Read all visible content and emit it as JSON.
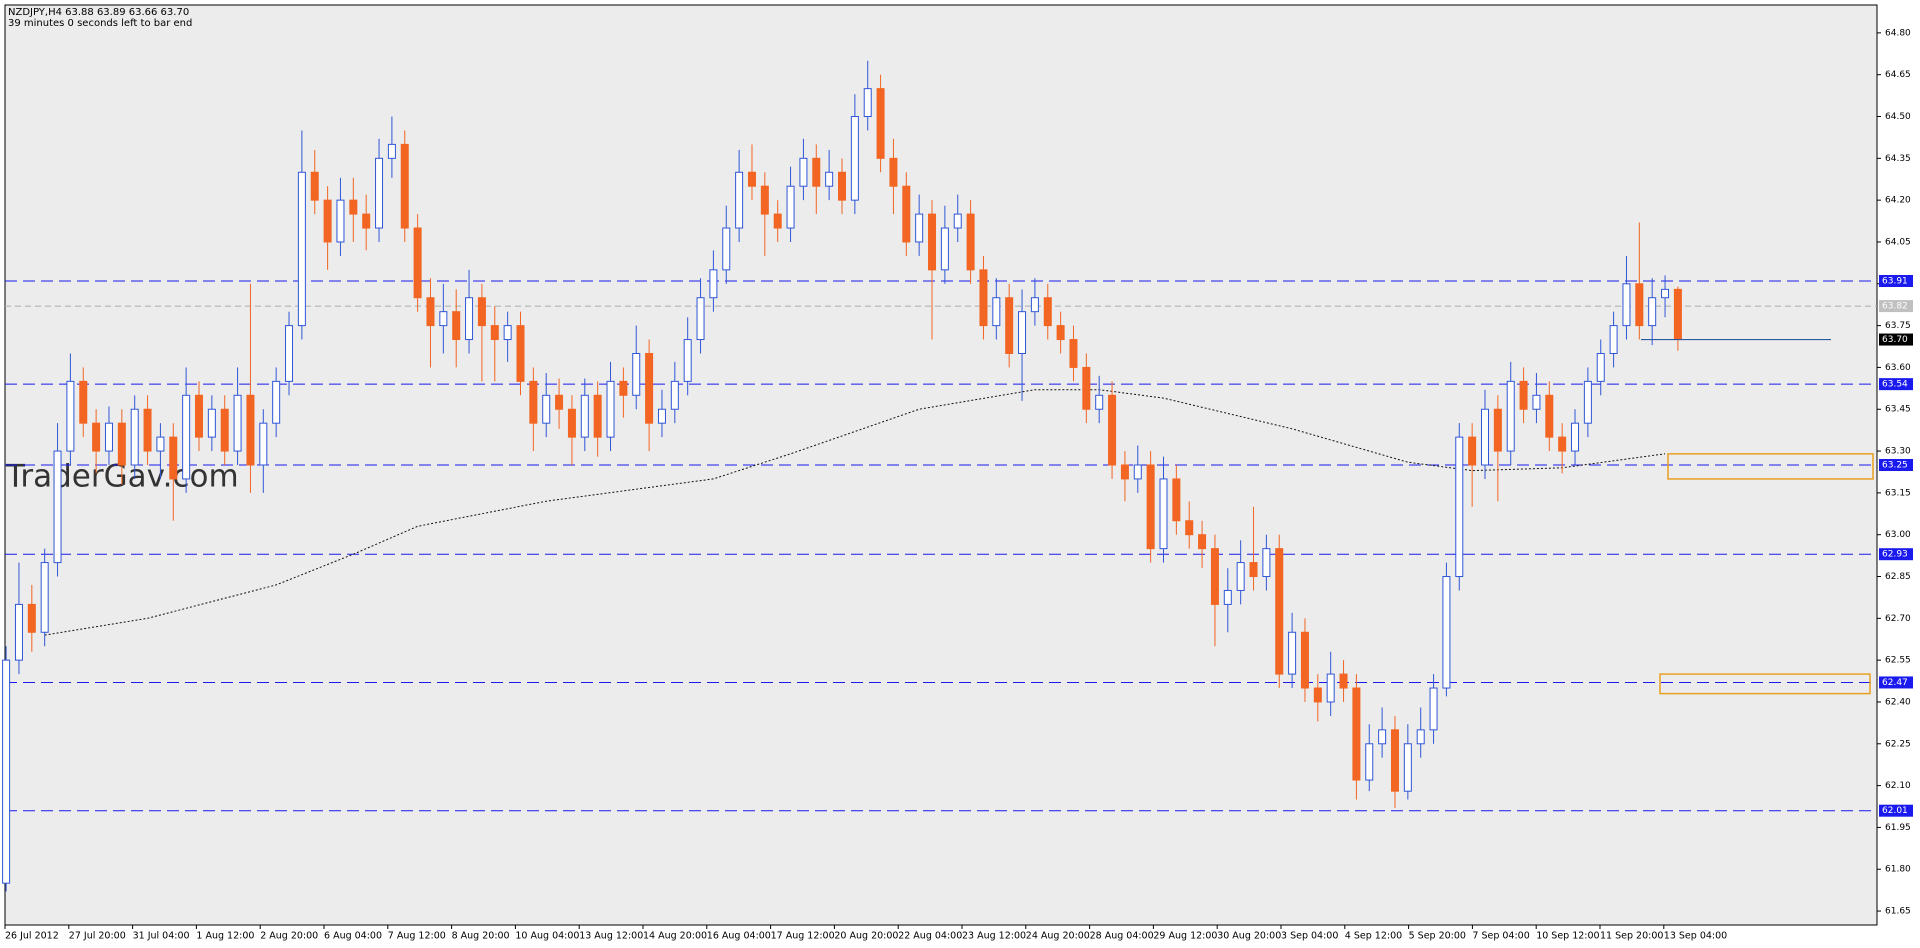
{
  "chart_data": {
    "type": "candlestick",
    "header": {
      "quote_line": "NZDJPY,H4  63.88 63.89 63.66 63.70",
      "timer": "39 minutes 0 seconds left to bar end"
    },
    "watermark": "TraderGav.com",
    "up_color": "#2f56d8",
    "down_color": "#f26522",
    "background": "#ececec",
    "ylim": [
      61.6,
      64.9
    ],
    "yticks": [
      {
        "value": 64.8,
        "label": "64.80"
      },
      64.65,
      {
        "value": 64.5,
        "label": "64.50"
      },
      64.35,
      {
        "value": 64.2,
        "label": "64.20"
      },
      64.05,
      {
        "value": 63.9,
        "label": "63.90"
      },
      63.75,
      {
        "value": 63.6,
        "label": "63.60"
      },
      63.45,
      {
        "value": 63.3,
        "label": "63.30"
      },
      63.15,
      {
        "value": 63.0,
        "label": "63.00"
      },
      62.85,
      {
        "value": 62.7,
        "label": "62.70"
      },
      62.55,
      {
        "value": 62.4,
        "label": "62.40"
      },
      62.25,
      {
        "value": 62.1,
        "label": "62.10"
      },
      61.95,
      {
        "value": 61.8,
        "label": "61.80"
      },
      61.65
    ],
    "x_labels": [
      "26 Jul 2012",
      "27 Jul 20:00",
      "31 Jul 04:00",
      "1 Aug 12:00",
      "2 Aug 20:00",
      "6 Aug 04:00",
      "7 Aug 12:00",
      "8 Aug 20:00",
      "10 Aug 04:00",
      "13 Aug 12:00",
      "14 Aug 20:00",
      "16 Aug 04:00",
      "17 Aug 12:00",
      "20 Aug 20:00",
      "22 Aug 04:00",
      "23 Aug 12:00",
      "24 Aug 20:00",
      "28 Aug 04:00",
      "29 Aug 12:00",
      "30 Aug 20:00",
      "3 Sep 04:00",
      "4 Sep 12:00",
      "5 Sep 20:00",
      "7 Sep 04:00",
      "10 Sep 12:00",
      "11 Sep 20:00",
      "13 Sep 04:00"
    ],
    "ohlc": [
      [
        61.75,
        62.6,
        61.72,
        62.55
      ],
      [
        62.55,
        62.9,
        62.5,
        62.75
      ],
      [
        62.75,
        62.82,
        62.58,
        62.65
      ],
      [
        62.65,
        62.95,
        62.6,
        62.9
      ],
      [
        62.9,
        63.4,
        62.85,
        63.3
      ],
      [
        63.3,
        63.65,
        63.25,
        63.55
      ],
      [
        63.55,
        63.6,
        63.35,
        63.4
      ],
      [
        63.4,
        63.45,
        63.22,
        63.3
      ],
      [
        63.3,
        63.46,
        63.25,
        63.4
      ],
      [
        63.4,
        63.45,
        63.18,
        63.25
      ],
      [
        63.25,
        63.5,
        63.2,
        63.45
      ],
      [
        63.45,
        63.5,
        63.25,
        63.3
      ],
      [
        63.3,
        63.4,
        63.2,
        63.35
      ],
      [
        63.35,
        63.4,
        63.05,
        63.2
      ],
      [
        63.2,
        63.6,
        63.15,
        63.5
      ],
      [
        63.5,
        63.55,
        63.3,
        63.35
      ],
      [
        63.35,
        63.5,
        63.3,
        63.45
      ],
      [
        63.45,
        63.5,
        63.25,
        63.3
      ],
      [
        63.3,
        63.6,
        63.25,
        63.5
      ],
      [
        63.5,
        63.9,
        63.15,
        63.25
      ],
      [
        63.25,
        63.45,
        63.15,
        63.4
      ],
      [
        63.4,
        63.6,
        63.35,
        63.55
      ],
      [
        63.55,
        63.8,
        63.5,
        63.75
      ],
      [
        63.75,
        64.45,
        63.7,
        64.3
      ],
      [
        64.3,
        64.38,
        64.15,
        64.2
      ],
      [
        64.2,
        64.25,
        63.95,
        64.05
      ],
      [
        64.05,
        64.28,
        64.0,
        64.2
      ],
      [
        64.2,
        64.28,
        64.05,
        64.15
      ],
      [
        64.15,
        64.22,
        64.02,
        64.1
      ],
      [
        64.1,
        64.42,
        64.05,
        64.35
      ],
      [
        64.35,
        64.5,
        64.28,
        64.4
      ],
      [
        64.4,
        64.45,
        64.05,
        64.1
      ],
      [
        64.1,
        64.15,
        63.8,
        63.85
      ],
      [
        63.85,
        63.92,
        63.6,
        63.75
      ],
      [
        63.75,
        63.9,
        63.65,
        63.8
      ],
      [
        63.8,
        63.88,
        63.6,
        63.7
      ],
      [
        63.7,
        63.95,
        63.65,
        63.85
      ],
      [
        63.85,
        63.9,
        63.55,
        63.75
      ],
      [
        63.75,
        63.82,
        63.55,
        63.7
      ],
      [
        63.7,
        63.8,
        63.62,
        63.75
      ],
      [
        63.75,
        63.8,
        63.5,
        63.55
      ],
      [
        63.55,
        63.6,
        63.3,
        63.4
      ],
      [
        63.4,
        63.58,
        63.35,
        63.5
      ],
      [
        63.5,
        63.56,
        63.38,
        63.45
      ],
      [
        63.45,
        63.5,
        63.25,
        63.35
      ],
      [
        63.35,
        63.56,
        63.3,
        63.5
      ],
      [
        63.5,
        63.55,
        63.28,
        63.35
      ],
      [
        63.35,
        63.62,
        63.3,
        63.55
      ],
      [
        63.55,
        63.6,
        63.42,
        63.5
      ],
      [
        63.5,
        63.75,
        63.45,
        63.65
      ],
      [
        63.65,
        63.7,
        63.3,
        63.4
      ],
      [
        63.4,
        63.52,
        63.35,
        63.45
      ],
      [
        63.45,
        63.62,
        63.4,
        63.55
      ],
      [
        63.55,
        63.78,
        63.5,
        63.7
      ],
      [
        63.7,
        63.92,
        63.65,
        63.85
      ],
      [
        63.85,
        64.02,
        63.8,
        63.95
      ],
      [
        63.95,
        64.18,
        63.9,
        64.1
      ],
      [
        64.1,
        64.38,
        64.05,
        64.3
      ],
      [
        64.3,
        64.4,
        64.2,
        64.25
      ],
      [
        64.25,
        64.3,
        64.0,
        64.15
      ],
      [
        64.15,
        64.2,
        64.05,
        64.1
      ],
      [
        64.1,
        64.32,
        64.05,
        64.25
      ],
      [
        64.25,
        64.42,
        64.2,
        64.35
      ],
      [
        64.35,
        64.4,
        64.15,
        64.25
      ],
      [
        64.25,
        64.38,
        64.2,
        64.3
      ],
      [
        64.3,
        64.35,
        64.15,
        64.2
      ],
      [
        64.2,
        64.58,
        64.15,
        64.5
      ],
      [
        64.5,
        64.7,
        64.45,
        64.6
      ],
      [
        64.6,
        64.65,
        64.3,
        64.35
      ],
      [
        64.35,
        64.42,
        64.15,
        64.25
      ],
      [
        64.25,
        64.3,
        64.0,
        64.05
      ],
      [
        64.05,
        64.22,
        64.0,
        64.15
      ],
      [
        64.15,
        64.2,
        63.7,
        63.95
      ],
      [
        63.95,
        64.18,
        63.9,
        64.1
      ],
      [
        64.1,
        64.22,
        64.05,
        64.15
      ],
      [
        64.15,
        64.2,
        63.9,
        63.95
      ],
      [
        63.95,
        64.0,
        63.7,
        63.75
      ],
      [
        63.75,
        63.92,
        63.7,
        63.85
      ],
      [
        63.85,
        63.9,
        63.6,
        63.65
      ],
      [
        63.65,
        63.88,
        63.48,
        63.8
      ],
      [
        63.8,
        63.92,
        63.75,
        63.85
      ],
      [
        63.85,
        63.9,
        63.7,
        63.75
      ],
      [
        63.75,
        63.8,
        63.65,
        63.7
      ],
      [
        63.7,
        63.75,
        63.55,
        63.6
      ],
      [
        63.6,
        63.65,
        63.4,
        63.45
      ],
      [
        63.45,
        63.57,
        63.4,
        63.5
      ],
      [
        63.5,
        63.55,
        63.2,
        63.25
      ],
      [
        63.25,
        63.3,
        63.12,
        63.2
      ],
      [
        63.2,
        63.32,
        63.15,
        63.25
      ],
      [
        63.25,
        63.3,
        62.9,
        62.95
      ],
      [
        62.95,
        63.28,
        62.9,
        63.2
      ],
      [
        63.2,
        63.25,
        63.0,
        63.05
      ],
      [
        63.05,
        63.12,
        62.95,
        63.0
      ],
      [
        63.0,
        63.05,
        62.88,
        62.95
      ],
      [
        62.95,
        63.0,
        62.6,
        62.75
      ],
      [
        62.75,
        62.88,
        62.65,
        62.8
      ],
      [
        62.8,
        62.98,
        62.75,
        62.9
      ],
      [
        62.9,
        63.1,
        62.8,
        62.85
      ],
      [
        62.85,
        63.0,
        62.8,
        62.95
      ],
      [
        62.95,
        63.0,
        62.45,
        62.5
      ],
      [
        62.5,
        62.72,
        62.45,
        62.65
      ],
      [
        62.65,
        62.7,
        62.4,
        62.45
      ],
      [
        62.45,
        62.5,
        62.33,
        62.4
      ],
      [
        62.4,
        62.58,
        62.35,
        62.5
      ],
      [
        62.5,
        62.55,
        62.4,
        62.45
      ],
      [
        62.45,
        62.5,
        62.05,
        62.12
      ],
      [
        62.12,
        62.32,
        62.08,
        62.25
      ],
      [
        62.25,
        62.38,
        62.2,
        62.3
      ],
      [
        62.3,
        62.35,
        62.02,
        62.08
      ],
      [
        62.08,
        62.32,
        62.05,
        62.25
      ],
      [
        62.25,
        62.38,
        62.2,
        62.3
      ],
      [
        62.3,
        62.5,
        62.25,
        62.45
      ],
      [
        62.45,
        62.9,
        62.42,
        62.85
      ],
      [
        62.85,
        63.4,
        62.8,
        63.35
      ],
      [
        63.35,
        63.4,
        63.1,
        63.25
      ],
      [
        63.25,
        63.52,
        63.2,
        63.45
      ],
      [
        63.45,
        63.5,
        63.12,
        63.3
      ],
      [
        63.3,
        63.62,
        63.25,
        63.55
      ],
      [
        63.55,
        63.6,
        63.4,
        63.45
      ],
      [
        63.45,
        63.58,
        63.4,
        63.5
      ],
      [
        63.5,
        63.55,
        63.3,
        63.35
      ],
      [
        63.35,
        63.4,
        63.22,
        63.3
      ],
      [
        63.3,
        63.45,
        63.25,
        63.4
      ],
      [
        63.4,
        63.6,
        63.35,
        63.55
      ],
      [
        63.55,
        63.7,
        63.5,
        63.65
      ],
      [
        63.65,
        63.8,
        63.6,
        63.75
      ],
      [
        63.75,
        64.0,
        63.7,
        63.9
      ],
      [
        63.9,
        64.12,
        63.7,
        63.75
      ],
      [
        63.75,
        63.92,
        63.68,
        63.85
      ],
      [
        63.85,
        63.93,
        63.78,
        63.88
      ],
      [
        63.88,
        63.89,
        63.66,
        63.7
      ]
    ],
    "ma": {
      "color": "#111111",
      "x": [
        3,
        11,
        21,
        27,
        32,
        42,
        55,
        61,
        71,
        80,
        85,
        90,
        100,
        109,
        114,
        121,
        129
      ],
      "values": [
        62.64,
        62.7,
        62.82,
        62.93,
        63.03,
        63.12,
        63.2,
        63.29,
        63.45,
        63.52,
        63.52,
        63.49,
        63.38,
        63.26,
        63.23,
        63.24,
        63.29
      ]
    },
    "levels": {
      "color": "#1a1aee",
      "values": [
        63.91,
        63.54,
        63.25,
        62.93,
        62.47,
        62.01
      ]
    },
    "bid": 63.82,
    "price": {
      "value": 63.7,
      "label": "63.70"
    },
    "hline": 63.7,
    "zones": [
      [
        63.29,
        63.2
      ],
      [
        62.5,
        62.43
      ]
    ],
    "zone_color": "#e8a020"
  }
}
